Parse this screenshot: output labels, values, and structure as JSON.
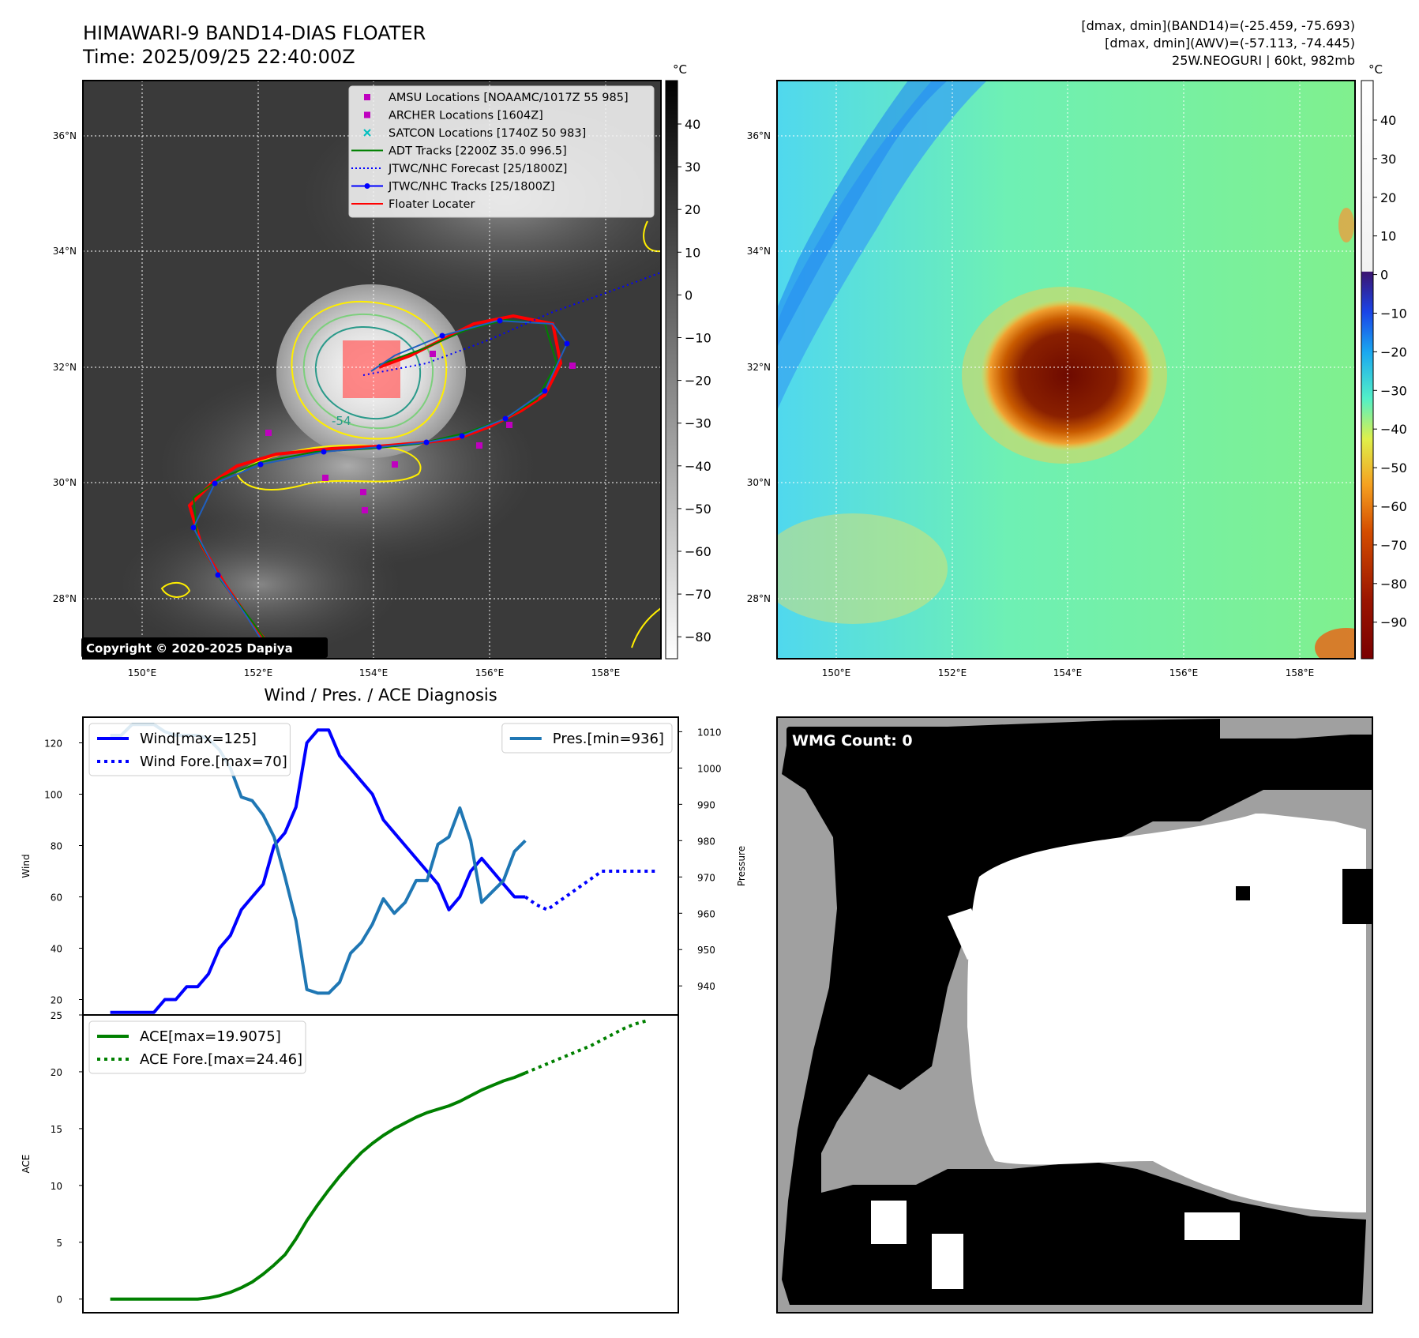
{
  "header": {
    "title": "HIMAWARI-9 BAND14-DIAS FLOATER",
    "time": "Time: 2025/09/25 22:40:00Z",
    "band14_range": "[dmax, dmin](BAND14)=(-25.459, -75.693)",
    "awv_range": "[dmax, dmin](AWV)=(-57.113, -74.445)",
    "storm_info": "25W.NEOGURI | 60kt, 982mb"
  },
  "copyright": "Copyright © 2020-2025 Dapiya",
  "map": {
    "lon_ticks": [
      "150°E",
      "152°E",
      "154°E",
      "156°E",
      "158°E"
    ],
    "lat_ticks": [
      "36°N",
      "34°N",
      "32°N",
      "30°N",
      "28°N"
    ],
    "contour_label": "-54",
    "legend": [
      {
        "label": "AMSU Locations [NOAAMC/1017Z 55 985]",
        "color": "#bf00bf",
        "marker": "square"
      },
      {
        "label": "ARCHER Locations [1604Z]",
        "color": "#bf00bf",
        "marker": "square"
      },
      {
        "label": "SATCON Locations [1740Z 50 983]",
        "color": "#00bfbf",
        "marker": "x"
      },
      {
        "label": "ADT Tracks [2200Z 35.0 996.5]",
        "color": "#008000",
        "marker": "line"
      },
      {
        "label": "JTWC/NHC Forecast [25/1800Z]",
        "color": "#0000ff",
        "marker": "dotted"
      },
      {
        "label": "JTWC/NHC Tracks [25/1800Z]",
        "color": "#0000ff",
        "marker": "line-dot"
      },
      {
        "label": "Floater Locater",
        "color": "#ff0000",
        "marker": "line"
      }
    ]
  },
  "colorbar_left": {
    "unit": "°C",
    "ticks": [
      "40",
      "30",
      "20",
      "10",
      "0",
      "−10",
      "−20",
      "−30",
      "−40",
      "−50",
      "−60",
      "−70",
      "−80"
    ]
  },
  "colorbar_right": {
    "unit": "°C",
    "ticks": [
      "40",
      "30",
      "20",
      "10",
      "0",
      "−10",
      "−20",
      "−30",
      "−40",
      "−50",
      "−60",
      "−70",
      "−80",
      "−90"
    ]
  },
  "diagnosis_title": "Wind / Pres. / ACE Diagnosis",
  "wmg": {
    "label": "WMG Count: 0"
  },
  "chart_data": [
    {
      "type": "line",
      "title": "Wind / Pres. / ACE Diagnosis",
      "ylabel": "Wind",
      "y2label": "Pressure",
      "ylim": [
        14,
        130
      ],
      "y2lim": [
        932,
        1014
      ],
      "yticks": [
        20,
        40,
        60,
        80,
        100,
        120
      ],
      "y2ticks": [
        940,
        950,
        960,
        970,
        980,
        990,
        1000,
        1010
      ],
      "x": [
        0,
        1,
        2,
        3,
        4,
        5,
        6,
        7,
        8,
        9,
        10,
        11,
        12,
        13,
        14,
        15,
        16,
        17,
        18,
        19,
        20,
        21,
        22,
        23,
        24,
        25,
        26,
        27,
        28,
        29,
        30,
        31,
        32,
        33,
        34,
        35,
        36,
        37,
        38,
        39,
        40,
        41,
        42,
        43,
        44,
        45,
        46,
        47,
        48,
        49,
        50
      ],
      "series": [
        {
          "name": "Wind[max=125]",
          "axis": "left",
          "color": "#0000ff",
          "style": "solid",
          "values": [
            15,
            15,
            15,
            15,
            15,
            20,
            20,
            25,
            25,
            30,
            40,
            45,
            55,
            60,
            65,
            80,
            85,
            95,
            120,
            125,
            125,
            115,
            110,
            105,
            100,
            90,
            85,
            80,
            75,
            70,
            65,
            55,
            60,
            70,
            75,
            70,
            65,
            60,
            60,
            null,
            null,
            null,
            null,
            null,
            null,
            null,
            null,
            null,
            null,
            null,
            null
          ]
        },
        {
          "name": "Wind Fore.[max=70]",
          "axis": "left",
          "color": "#0000ff",
          "style": "dotted",
          "values": [
            null,
            null,
            null,
            null,
            null,
            null,
            null,
            null,
            null,
            null,
            null,
            null,
            null,
            null,
            null,
            null,
            null,
            null,
            null,
            null,
            null,
            null,
            null,
            null,
            null,
            null,
            null,
            null,
            null,
            null,
            null,
            null,
            null,
            null,
            null,
            null,
            null,
            null,
            60,
            57,
            55,
            58,
            61,
            64,
            67,
            70,
            70,
            70,
            70,
            70,
            70
          ]
        },
        {
          "name": "Pres.[min=936]",
          "axis": "right",
          "color": "#1f77b4",
          "style": "solid",
          "values": [
            1009,
            1009,
            1012,
            1012,
            1012,
            1010,
            1009,
            1009,
            1009,
            1008,
            1005,
            1000,
            992,
            991,
            987,
            981,
            970,
            958,
            939,
            938,
            938,
            941,
            949,
            952,
            957,
            964,
            960,
            963,
            969,
            969,
            979,
            981,
            989,
            980,
            963,
            966,
            969,
            977,
            980,
            null,
            null,
            null,
            null,
            null,
            null,
            null,
            null,
            null,
            null,
            null,
            null
          ]
        }
      ]
    },
    {
      "type": "line",
      "ylabel": "ACE",
      "ylim": [
        -1.2,
        25
      ],
      "yticks": [
        0,
        5,
        10,
        15,
        20,
        25
      ],
      "x": [
        0,
        1,
        2,
        3,
        4,
        5,
        6,
        7,
        8,
        9,
        10,
        11,
        12,
        13,
        14,
        15,
        16,
        17,
        18,
        19,
        20,
        21,
        22,
        23,
        24,
        25,
        26,
        27,
        28,
        29,
        30,
        31,
        32,
        33,
        34,
        35,
        36,
        37,
        38,
        39,
        40,
        41,
        42,
        43,
        44,
        45,
        46,
        47,
        48,
        49,
        50
      ],
      "series": [
        {
          "name": "ACE[max=19.9075]",
          "color": "#008000",
          "style": "solid",
          "values": [
            0,
            0,
            0,
            0,
            0,
            0,
            0,
            0,
            0,
            0.1,
            0.3,
            0.6,
            1.0,
            1.5,
            2.2,
            3.0,
            3.9,
            5.3,
            6.9,
            8.3,
            9.6,
            10.8,
            11.9,
            12.9,
            13.7,
            14.4,
            15.0,
            15.5,
            16.0,
            16.4,
            16.7,
            17.0,
            17.4,
            17.9,
            18.4,
            18.8,
            19.2,
            19.5,
            19.9,
            null,
            null,
            null,
            null,
            null,
            null,
            null,
            null,
            null,
            null,
            null,
            null
          ]
        },
        {
          "name": "ACE Fore.[max=24.46]",
          "color": "#008000",
          "style": "dotted",
          "values": [
            null,
            null,
            null,
            null,
            null,
            null,
            null,
            null,
            null,
            null,
            null,
            null,
            null,
            null,
            null,
            null,
            null,
            null,
            null,
            null,
            null,
            null,
            null,
            null,
            null,
            null,
            null,
            null,
            null,
            null,
            null,
            null,
            null,
            null,
            null,
            null,
            null,
            null,
            19.9,
            20.3,
            20.7,
            21.1,
            21.5,
            21.9,
            22.3,
            22.8,
            23.3,
            23.8,
            24.2,
            24.46,
            null
          ]
        }
      ]
    }
  ]
}
